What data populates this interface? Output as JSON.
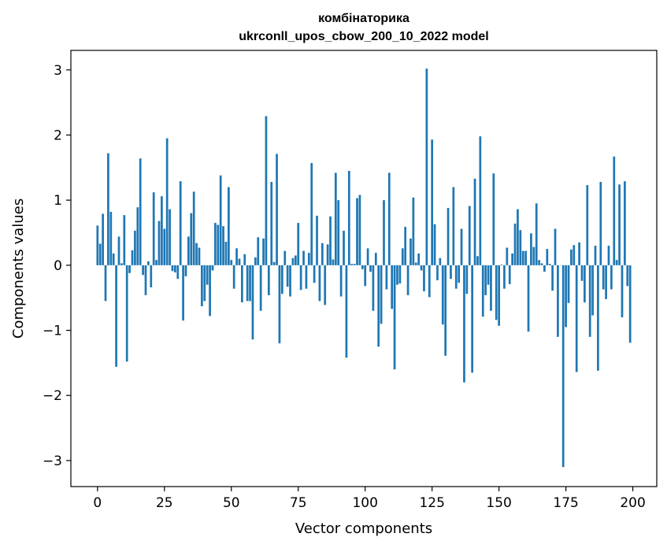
{
  "chart_data": {
    "type": "bar",
    "title": "комбінаторика",
    "subtitle": "ukrconll_upos_cbow_200_10_2022 model",
    "xlabel": "Vector components",
    "ylabel": "Components values",
    "xlim": [
      -9.95,
      208.95
    ],
    "ylim": [
      -3.4,
      3.3
    ],
    "xticks": [
      0,
      25,
      50,
      75,
      100,
      125,
      150,
      175,
      200
    ],
    "yticks": [
      -3,
      -2,
      -1,
      0,
      1,
      2,
      3
    ],
    "xtick_labels": [
      "0",
      "25",
      "50",
      "75",
      "100",
      "125",
      "150",
      "175",
      "200"
    ],
    "ytick_labels": [
      "−3",
      "−2",
      "−1",
      "0",
      "1",
      "2",
      "3"
    ],
    "grid": false,
    "bar_color": "#1f77b4",
    "values": [
      0.61,
      0.33,
      0.79,
      -0.55,
      1.72,
      0.82,
      0.18,
      -1.56,
      0.44,
      0.03,
      0.77,
      -1.48,
      -0.12,
      0.23,
      0.53,
      0.89,
      1.64,
      -0.15,
      -0.46,
      0.06,
      -0.34,
      1.12,
      0.08,
      0.68,
      1.06,
      0.56,
      1.95,
      0.86,
      -0.09,
      -0.11,
      -0.21,
      1.29,
      -0.85,
      -0.17,
      0.44,
      0.8,
      1.13,
      0.34,
      0.27,
      -0.63,
      -0.55,
      -0.3,
      -0.78,
      -0.08,
      0.65,
      0.62,
      1.38,
      0.6,
      0.36,
      1.2,
      0.08,
      -0.36,
      0.26,
      0.1,
      -0.57,
      0.17,
      -0.55,
      -0.55,
      -1.14,
      0.12,
      0.43,
      -0.7,
      0.41,
      2.29,
      -0.46,
      1.28,
      0.05,
      1.71,
      -1.2,
      -0.44,
      0.22,
      -0.33,
      -0.48,
      0.11,
      0.15,
      0.65,
      -0.38,
      0.22,
      -0.36,
      0.19,
      1.57,
      -0.27,
      0.76,
      -0.55,
      0.34,
      -0.61,
      0.32,
      0.75,
      0.09,
      1.42,
      1.0,
      -0.48,
      0.53,
      -1.42,
      1.45,
      0.02,
      0.02,
      1.03,
      1.08,
      -0.06,
      -0.32,
      0.26,
      -0.1,
      -0.7,
      0.19,
      -1.25,
      -0.9,
      1.0,
      -0.37,
      1.42,
      -0.67,
      -1.6,
      -0.3,
      -0.28,
      0.26,
      0.59,
      -0.46,
      0.41,
      1.04,
      0.04,
      0.18,
      -0.08,
      -0.4,
      3.02,
      -0.49,
      1.93,
      0.63,
      -0.23,
      0.11,
      -0.91,
      -1.39,
      0.88,
      -0.21,
      1.2,
      -0.36,
      -0.27,
      0.56,
      -1.8,
      -0.44,
      0.91,
      -1.65,
      1.33,
      0.14,
      1.98,
      -0.79,
      -0.46,
      -0.3,
      -0.7,
      1.41,
      -0.84,
      -0.93,
      0.01,
      -0.36,
      0.27,
      -0.29,
      0.18,
      0.64,
      0.86,
      0.54,
      0.22,
      0.22,
      -1.02,
      0.49,
      0.28,
      0.95,
      0.08,
      0.03,
      -0.1,
      0.25,
      0.02,
      -0.39,
      0.56,
      -1.1,
      0.0,
      -3.1,
      -0.95,
      -0.58,
      0.24,
      0.31,
      -1.64,
      0.35,
      -0.24,
      -0.57,
      1.23,
      -1.1,
      -0.77,
      0.3,
      -1.62,
      1.28,
      -0.37,
      -0.52,
      0.3,
      -0.37,
      1.67,
      0.08,
      1.24,
      -0.8,
      1.29,
      -0.32,
      -1.19
    ]
  }
}
